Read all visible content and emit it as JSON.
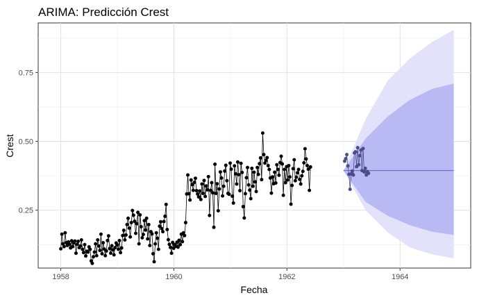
{
  "chart_data": {
    "type": "line",
    "title": "ARIMA: Predicción Crest",
    "xlabel": "Fecha",
    "ylabel": "Crest",
    "xlim": [
      1957.6,
      1965.25
    ],
    "ylim": [
      0.04,
      0.93
    ],
    "x_ticks": [
      1958,
      1960,
      1962,
      1964
    ],
    "y_ticks": [
      0.25,
      0.5,
      0.75
    ],
    "x_tick_labels": [
      "1958",
      "1960",
      "1962",
      "1964"
    ],
    "y_tick_labels": [
      "0.25",
      "0.50",
      "0.75"
    ],
    "grid": true,
    "legend": "none",
    "colors": {
      "observed": "#000000",
      "holdout": "#4b4b8a",
      "forecast": "#5e5ed6",
      "band80": "#b9b9f3",
      "band95": "#e2e2fb"
    },
    "series": [
      {
        "x_start": 1958.0,
        "x_step": 0.0192,
        "values": [
          0.11,
          0.163,
          0.128,
          0.118,
          0.168,
          0.132,
          0.122,
          0.135,
          0.126,
          0.113,
          0.139,
          0.118,
          0.131,
          0.138,
          0.094,
          0.126,
          0.137,
          0.114,
          0.12,
          0.142,
          0.108,
          0.096,
          0.125,
          0.084,
          0.101,
          0.098,
          0.117,
          0.108,
          0.066,
          0.057,
          0.081,
          0.098,
          0.128,
          0.085,
          0.142,
          0.12,
          0.104,
          0.163,
          0.092,
          0.132,
          0.109,
          0.085,
          0.102,
          0.14,
          0.157,
          0.111,
          0.094,
          0.121,
          0.106,
          0.088,
          0.114,
          0.131,
          0.124,
          0.108,
          0.14,
          0.096,
          0.113,
          0.158,
          0.177,
          0.142,
          0.16,
          0.198,
          0.221,
          0.185,
          0.153,
          0.205,
          0.249,
          0.232,
          0.21,
          0.166,
          0.201,
          0.242,
          0.128,
          0.233,
          0.19,
          0.15,
          0.162,
          0.212,
          0.178,
          0.221,
          0.146,
          0.198,
          0.122,
          0.172,
          0.164,
          0.092,
          0.063,
          0.128,
          0.168,
          0.148,
          0.108,
          0.192,
          0.208,
          0.183,
          0.172,
          0.209,
          0.228,
          0.271,
          0.18,
          0.143,
          0.126,
          0.115,
          0.094,
          0.133,
          0.112,
          0.125,
          0.119,
          0.134,
          0.116,
          0.141,
          0.125,
          0.163,
          0.136,
          0.168,
          0.158,
          0.205,
          0.309,
          0.378,
          0.31,
          0.287,
          0.36,
          0.343,
          0.322,
          0.351,
          0.366,
          0.321,
          0.309,
          0.298,
          0.32,
          0.289,
          0.345,
          0.311,
          0.358,
          0.3,
          0.338,
          0.324,
          0.372,
          0.231,
          0.322,
          0.35,
          0.313,
          0.188,
          0.417,
          0.311,
          0.346,
          0.248,
          0.327,
          0.389,
          0.367,
          0.302,
          0.337,
          0.392,
          0.413,
          0.357,
          0.311,
          0.308,
          0.421,
          0.399,
          0.301,
          0.276,
          0.411,
          0.382,
          0.345,
          0.425,
          0.379,
          0.321,
          0.42,
          0.387,
          0.263,
          0.222,
          0.31,
          0.368,
          0.405,
          0.342,
          0.323,
          0.292,
          0.402,
          0.337,
          0.388,
          0.353,
          0.318,
          0.405,
          0.38,
          0.419,
          0.44,
          0.361,
          0.53,
          0.452,
          0.421,
          0.431,
          0.441,
          0.412,
          0.398,
          0.367,
          0.312,
          0.371,
          0.346,
          0.388,
          0.349,
          0.415,
          0.398,
          0.377,
          0.423,
          0.446,
          0.418,
          0.304,
          0.398,
          0.35,
          0.408,
          0.36,
          0.412,
          0.371,
          0.272,
          0.34,
          0.401,
          0.433,
          0.357,
          0.37,
          0.386,
          0.398,
          0.362,
          0.345,
          0.375,
          0.391,
          0.422,
          0.473,
          0.436,
          0.412,
          0.399,
          0.322,
          0.407
        ]
      },
      {
        "x_start": 1963.02,
        "x_step": 0.0192,
        "values": [
          0.428,
          0.437,
          0.452,
          0.411,
          0.38,
          0.326,
          0.382,
          0.392,
          0.378,
          0.458,
          0.462,
          0.408,
          0.477,
          0.415,
          0.448,
          0.468,
          0.394,
          0.474,
          0.389,
          0.402,
          0.378,
          0.39,
          0.384
        ]
      }
    ],
    "forecast": {
      "x_start": 1963.0,
      "x_end": 1964.95,
      "mean": 0.394,
      "lo80": [
        0.394,
        0.28,
        0.23,
        0.196,
        0.172,
        0.16
      ],
      "hi80": [
        0.394,
        0.51,
        0.59,
        0.65,
        0.69,
        0.71
      ],
      "lo95": [
        0.394,
        0.25,
        0.17,
        0.115,
        0.09,
        0.075
      ],
      "hi95": [
        0.394,
        0.58,
        0.72,
        0.8,
        0.86,
        0.905
      ]
    }
  }
}
